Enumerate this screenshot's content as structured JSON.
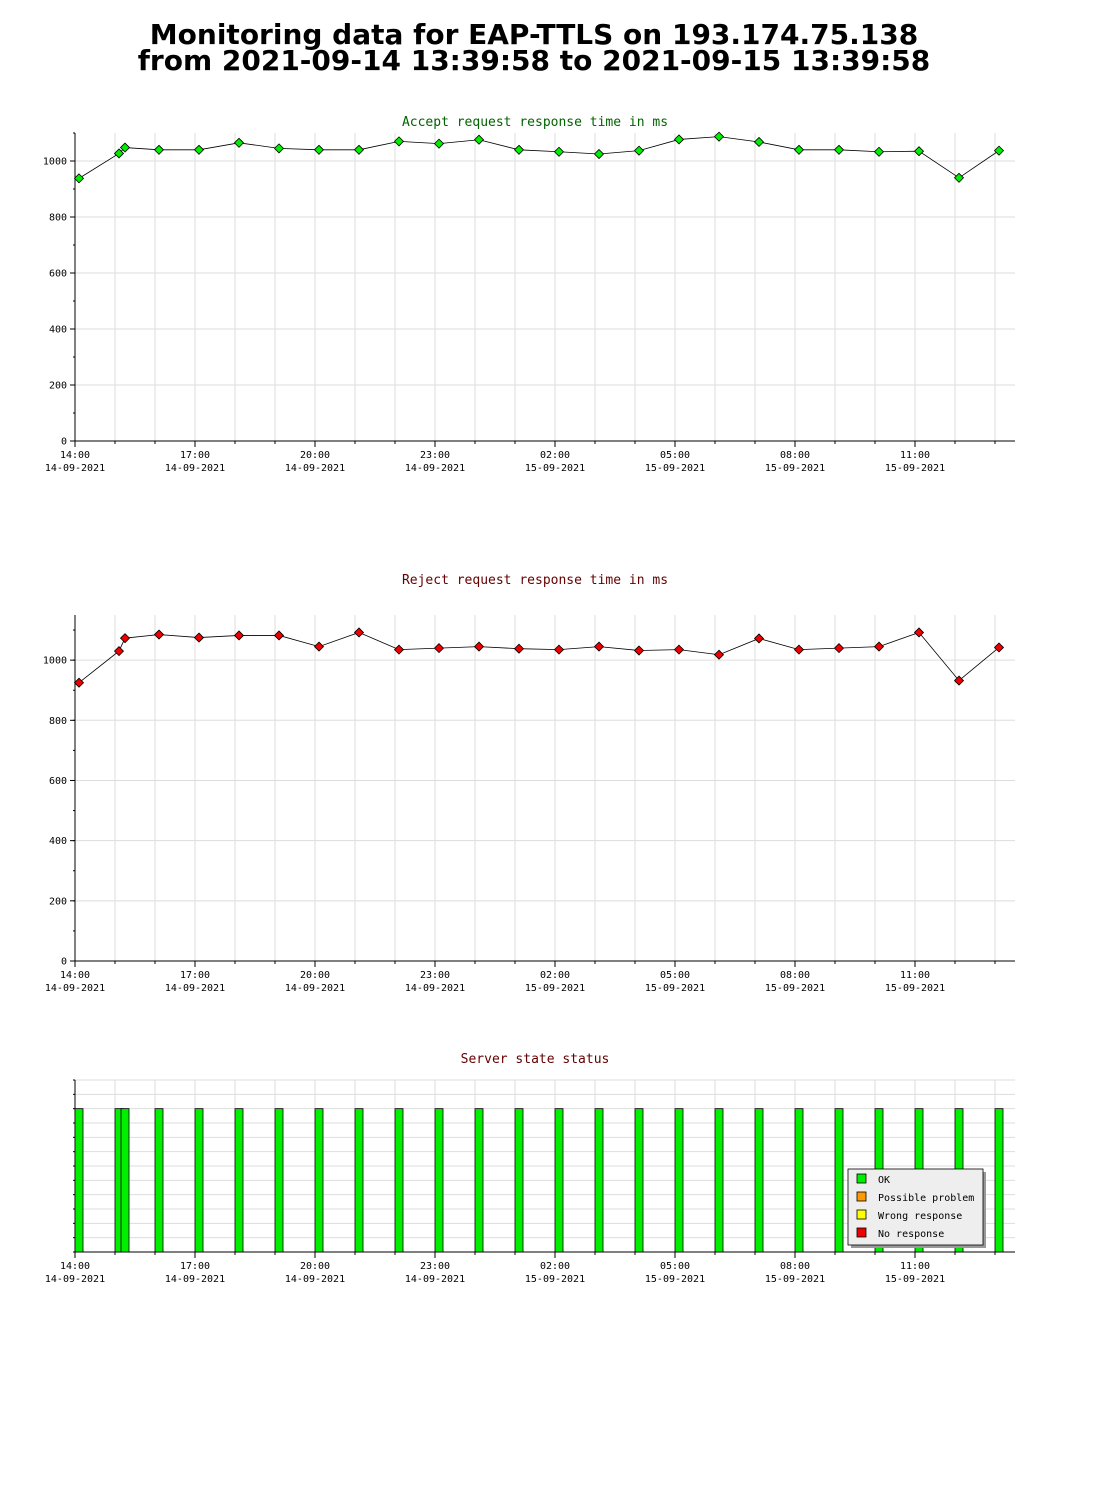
{
  "page": {
    "title_line1": "Monitoring data for EAP-TTLS on 193.174.75.138",
    "title_line2": "from 2021-09-14 13:39:58 to 2021-09-15 13:39:58"
  },
  "colors": {
    "accept_title": "#006400",
    "reject_title": "#640000",
    "status_title": "#640000",
    "accept_marker": "#00ee00",
    "reject_marker": "#ee0000",
    "ok": "#00ee00",
    "possible_problem": "#ff9900",
    "wrong_response": "#ffff00",
    "no_response": "#ee0000",
    "grid": "#dddddd"
  },
  "chart_data": [
    {
      "type": "line",
      "title": "Accept request response time in ms",
      "ylim": [
        0,
        1100
      ],
      "yticks": [
        0,
        200,
        400,
        600,
        800,
        1000
      ],
      "xlim": [
        0,
        23.5
      ],
      "xticks": [
        {
          "x": 0,
          "time": "14:00",
          "date": "14-09-2021"
        },
        {
          "x": 3,
          "time": "17:00",
          "date": "14-09-2021"
        },
        {
          "x": 6,
          "time": "20:00",
          "date": "14-09-2021"
        },
        {
          "x": 9,
          "time": "23:00",
          "date": "14-09-2021"
        },
        {
          "x": 12,
          "time": "02:00",
          "date": "15-09-2021"
        },
        {
          "x": 15,
          "time": "05:00",
          "date": "15-09-2021"
        },
        {
          "x": 18,
          "time": "08:00",
          "date": "15-09-2021"
        },
        {
          "x": 21,
          "time": "11:00",
          "date": "15-09-2021"
        }
      ],
      "grid": true,
      "series": [
        {
          "x": [
            0.1,
            1.1,
            1.25,
            2.1,
            3.1,
            4.1,
            5.1,
            6.1,
            7.1,
            8.1,
            9.1,
            10.1,
            11.1,
            12.1,
            13.1,
            14.1,
            15.1,
            16.1,
            17.1,
            18.1,
            19.1,
            20.1,
            21.1,
            22.1,
            23.1
          ],
          "y": [
            938,
            1027,
            1048,
            1040,
            1040,
            1065,
            1045,
            1040,
            1040,
            1070,
            1062,
            1076,
            1040,
            1033,
            1025,
            1037,
            1077,
            1087,
            1068,
            1040,
            1040,
            1033,
            1035,
            940,
            1037
          ]
        }
      ]
    },
    {
      "type": "line",
      "title": "Reject request response time in ms",
      "ylim": [
        0,
        1150
      ],
      "yticks": [
        0,
        200,
        400,
        600,
        800,
        1000
      ],
      "xlim": [
        0,
        23.5
      ],
      "xticks": [
        {
          "x": 0,
          "time": "14:00",
          "date": "14-09-2021"
        },
        {
          "x": 3,
          "time": "17:00",
          "date": "14-09-2021"
        },
        {
          "x": 6,
          "time": "20:00",
          "date": "14-09-2021"
        },
        {
          "x": 9,
          "time": "23:00",
          "date": "14-09-2021"
        },
        {
          "x": 12,
          "time": "02:00",
          "date": "15-09-2021"
        },
        {
          "x": 15,
          "time": "05:00",
          "date": "15-09-2021"
        },
        {
          "x": 18,
          "time": "08:00",
          "date": "15-09-2021"
        },
        {
          "x": 21,
          "time": "11:00",
          "date": "15-09-2021"
        }
      ],
      "grid": true,
      "series": [
        {
          "x": [
            0.1,
            1.1,
            1.25,
            2.1,
            3.1,
            4.1,
            5.1,
            6.1,
            7.1,
            8.1,
            9.1,
            10.1,
            11.1,
            12.1,
            13.1,
            14.1,
            15.1,
            16.1,
            17.1,
            18.1,
            19.1,
            20.1,
            21.1,
            22.1,
            23.1
          ],
          "y": [
            925,
            1030,
            1073,
            1085,
            1075,
            1082,
            1082,
            1045,
            1092,
            1035,
            1040,
            1045,
            1038,
            1035,
            1045,
            1032,
            1035,
            1018,
            1072,
            1035,
            1040,
            1045,
            1092,
            932,
            1042
          ]
        }
      ]
    },
    {
      "type": "bar",
      "title": "Server state status",
      "xlim": [
        0,
        23.5
      ],
      "xticks": [
        {
          "x": 0,
          "time": "14:00",
          "date": "14-09-2021"
        },
        {
          "x": 3,
          "time": "17:00",
          "date": "14-09-2021"
        },
        {
          "x": 6,
          "time": "20:00",
          "date": "14-09-2021"
        },
        {
          "x": 9,
          "time": "23:00",
          "date": "14-09-2021"
        },
        {
          "x": 12,
          "time": "02:00",
          "date": "15-09-2021"
        },
        {
          "x": 15,
          "time": "05:00",
          "date": "15-09-2021"
        },
        {
          "x": 18,
          "time": "08:00",
          "date": "15-09-2021"
        },
        {
          "x": 21,
          "time": "11:00",
          "date": "15-09-2021"
        }
      ],
      "ylim": [
        0,
        1.2
      ],
      "grid": true,
      "states": [
        {
          "x": 0.1,
          "state": "OK"
        },
        {
          "x": 1.1,
          "state": "OK"
        },
        {
          "x": 1.25,
          "state": "OK"
        },
        {
          "x": 2.1,
          "state": "OK"
        },
        {
          "x": 3.1,
          "state": "OK"
        },
        {
          "x": 4.1,
          "state": "OK"
        },
        {
          "x": 5.1,
          "state": "OK"
        },
        {
          "x": 6.1,
          "state": "OK"
        },
        {
          "x": 7.1,
          "state": "OK"
        },
        {
          "x": 8.1,
          "state": "OK"
        },
        {
          "x": 9.1,
          "state": "OK"
        },
        {
          "x": 10.1,
          "state": "OK"
        },
        {
          "x": 11.1,
          "state": "OK"
        },
        {
          "x": 12.1,
          "state": "OK"
        },
        {
          "x": 13.1,
          "state": "OK"
        },
        {
          "x": 14.1,
          "state": "OK"
        },
        {
          "x": 15.1,
          "state": "OK"
        },
        {
          "x": 16.1,
          "state": "OK"
        },
        {
          "x": 17.1,
          "state": "OK"
        },
        {
          "x": 18.1,
          "state": "OK"
        },
        {
          "x": 19.1,
          "state": "OK"
        },
        {
          "x": 20.1,
          "state": "OK"
        },
        {
          "x": 21.1,
          "state": "OK"
        },
        {
          "x": 22.1,
          "state": "OK"
        },
        {
          "x": 23.1,
          "state": "OK"
        }
      ],
      "legend_position": "bottom-right",
      "legend": [
        "OK",
        "Possible problem",
        "Wrong response",
        "No response"
      ]
    }
  ]
}
